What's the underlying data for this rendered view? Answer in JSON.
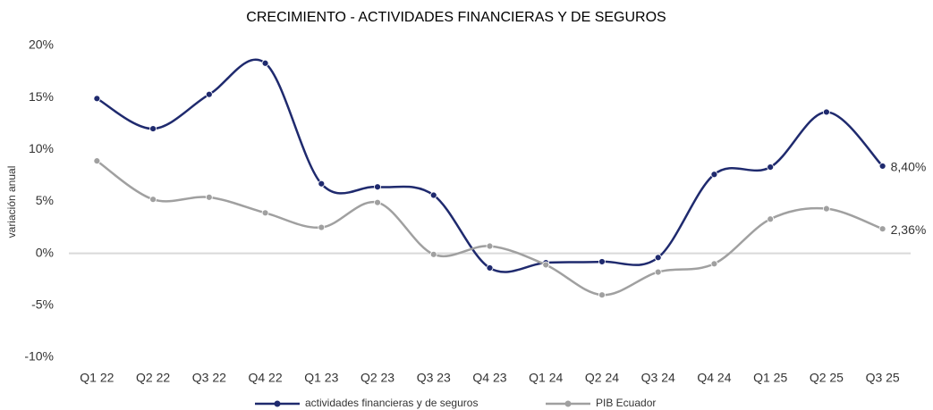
{
  "chart_data": {
    "type": "line",
    "title": "CRECIMIENTO - ACTIVIDADES FINANCIERAS Y DE SEGUROS",
    "y_label": "variación anual",
    "categories": [
      "Q1 22",
      "Q2 22",
      "Q3 22",
      "Q4 22",
      "Q1 23",
      "Q2 23",
      "Q3 23",
      "Q4 23",
      "Q1 24",
      "Q2 24",
      "Q3 24",
      "Q4 24",
      "Q1 25",
      "Q2 25",
      "Q3 25"
    ],
    "series": [
      {
        "name": "actividades financieras y de seguros",
        "color": "#1f2a6e",
        "values": [
          14.9,
          12.0,
          15.3,
          18.3,
          6.7,
          6.4,
          5.6,
          -1.4,
          -0.9,
          -0.8,
          -0.4,
          7.6,
          8.3,
          13.6,
          8.4
        ],
        "value_labels": [
          null,
          null,
          null,
          null,
          null,
          null,
          null,
          null,
          null,
          null,
          null,
          null,
          null,
          null,
          "8,40%"
        ]
      },
      {
        "name": "PIB Ecuador",
        "color": "#a0a0a0",
        "values": [
          8.9,
          5.2,
          5.4,
          3.9,
          2.5,
          4.9,
          -0.1,
          0.7,
          -1.1,
          -4.0,
          -1.8,
          -1.0,
          3.3,
          4.3,
          2.36
        ],
        "value_labels": [
          null,
          null,
          null,
          null,
          null,
          null,
          null,
          null,
          null,
          null,
          null,
          null,
          null,
          null,
          "2,36%"
        ]
      }
    ],
    "ylim": [
      -10,
      20
    ],
    "yticks": [
      {
        "value": -10,
        "label": "-10%"
      },
      {
        "value": -5,
        "label": "-5%"
      },
      {
        "value": 0,
        "label": "0%"
      },
      {
        "value": 5,
        "label": "5%"
      },
      {
        "value": 10,
        "label": "10%"
      },
      {
        "value": 15,
        "label": "15%"
      },
      {
        "value": 20,
        "label": "20%"
      }
    ],
    "zero_line": true,
    "legend": "bottom"
  }
}
